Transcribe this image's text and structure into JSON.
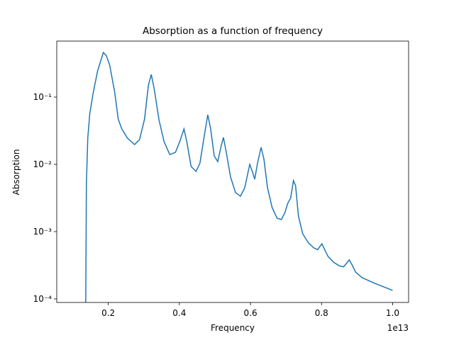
{
  "chart_data": {
    "type": "line",
    "title": "Absorption as a function of frequency",
    "x_label": "Frequency",
    "y_label": "Absorption",
    "x_offset_label": "1e13",
    "y_scale": "log",
    "xlim": [
      0.055,
      1.045
    ],
    "ylim": [
      8.85e-05,
      0.68
    ],
    "xticks": [
      0.2,
      0.4,
      0.6,
      0.8,
      {
        "value": 1.0,
        "label": "1.0"
      }
    ],
    "yticks": [
      {
        "value": 0.0001,
        "label": "10⁻⁴"
      },
      {
        "value": 0.001,
        "label": "10⁻³"
      },
      {
        "value": 0.01,
        "label": "10⁻²"
      },
      {
        "value": 0.1,
        "label": "10⁻¹"
      }
    ],
    "series": [
      {
        "color": "#1f77b4",
        "x": [
          0.1364,
          0.1384,
          0.1423,
          0.148,
          0.158,
          0.17,
          0.186,
          0.194,
          0.204,
          0.218,
          0.228,
          0.238,
          0.254,
          0.274,
          0.288,
          0.302,
          0.313,
          0.321,
          0.329,
          0.343,
          0.357,
          0.373,
          0.389,
          0.401,
          0.413,
          0.421,
          0.433,
          0.447,
          0.458,
          0.47,
          0.48,
          0.488,
          0.498,
          0.508,
          0.518,
          0.524,
          0.532,
          0.544,
          0.558,
          0.572,
          0.584,
          0.598,
          0.606,
          0.612,
          0.62,
          0.63,
          0.638,
          0.648,
          0.661,
          0.675,
          0.687,
          0.697,
          0.705,
          0.713,
          0.721,
          0.727,
          0.735,
          0.747,
          0.763,
          0.779,
          0.789,
          0.801,
          0.809,
          0.818,
          0.834,
          0.85,
          0.862,
          0.87,
          0.878,
          0.886,
          0.896,
          0.914,
          0.95,
          1.0
        ],
        "values": [
          6e-05,
          0.0051,
          0.0245,
          0.057,
          0.119,
          0.245,
          0.46,
          0.417,
          0.298,
          0.119,
          0.047,
          0.0336,
          0.0245,
          0.0197,
          0.0233,
          0.047,
          0.151,
          0.217,
          0.134,
          0.045,
          0.0217,
          0.014,
          0.0151,
          0.0217,
          0.0336,
          0.0217,
          0.0093,
          0.00785,
          0.0105,
          0.0264,
          0.0546,
          0.0336,
          0.0134,
          0.011,
          0.0192,
          0.0251,
          0.0151,
          0.0065,
          0.0038,
          0.00336,
          0.0045,
          0.01,
          0.00766,
          0.006,
          0.0105,
          0.0179,
          0.0119,
          0.0045,
          0.00228,
          0.00158,
          0.00151,
          0.00192,
          0.00264,
          0.00313,
          0.00573,
          0.00483,
          0.0017,
          0.00093,
          0.00068,
          0.00057,
          0.00054,
          0.00066,
          0.00054,
          0.00043,
          0.00035,
          0.00031,
          0.0003,
          0.000336,
          0.00038,
          0.00032,
          0.00025,
          0.000207,
          0.00017,
          0.000134
        ]
      }
    ]
  }
}
